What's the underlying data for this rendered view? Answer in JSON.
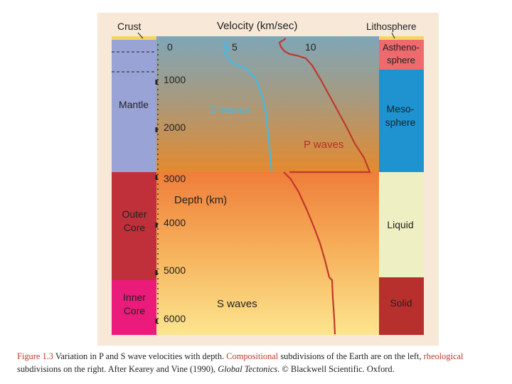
{
  "figure": {
    "top_labels": {
      "crust": "Crust",
      "velocity_title": "Velocity (km/sec)",
      "lithosphere": "Lithosphere"
    },
    "velocity_ticks": [
      "0",
      "5",
      "10"
    ],
    "depth_axis_title": "Depth (km)",
    "depth_ticks": [
      "1000",
      "2000",
      "3000",
      "4000",
      "5000",
      "6000"
    ],
    "left_layers": [
      {
        "label_lines": [
          "Mantle"
        ],
        "color": "#9aa3d6"
      },
      {
        "label_lines": [
          "Outer",
          "Core"
        ],
        "color": "#c0303a"
      },
      {
        "label_lines": [
          "Inner",
          "Core"
        ],
        "color": "#ea1b7a"
      }
    ],
    "right_layers": [
      {
        "label_lines": [
          "Astheno-",
          "sphere"
        ],
        "color": "#ee6a6f"
      },
      {
        "label_lines": [
          "Meso-",
          "sphere"
        ],
        "color": "#1e93cf"
      },
      {
        "label_lines": [
          "Liquid"
        ],
        "color": "#eef0c3"
      },
      {
        "label_lines": [
          "Solid"
        ],
        "color": "#b7302d"
      }
    ],
    "curve_labels": {
      "s_waves_mantle": "S waves",
      "p_waves": "P waves",
      "s_waves_core": "S waves"
    },
    "colors": {
      "s_wave_line": "#4bb8e0",
      "p_wave_line": "#c0392b",
      "mantle_gradient_top": "#7fa6b8",
      "mantle_gradient_bottom": "#e48a2e",
      "core_gradient_top": "#ef7d3a",
      "core_gradient_bottom": "#fde58f"
    }
  },
  "caption": {
    "label": "Figure 1.3",
    "text_1": "Variation in P and S wave velocities with depth.",
    "word_compositional": "Compositional",
    "text_2": "subdivisions of the Earth are on the left,",
    "word_rheological": "rheological",
    "text_3": "subdivisions on the right. After Kearey and Vine (1990),",
    "book_title": "Global Tectonics",
    "text_4": ". © Blackwell Scientific. Oxford."
  }
}
